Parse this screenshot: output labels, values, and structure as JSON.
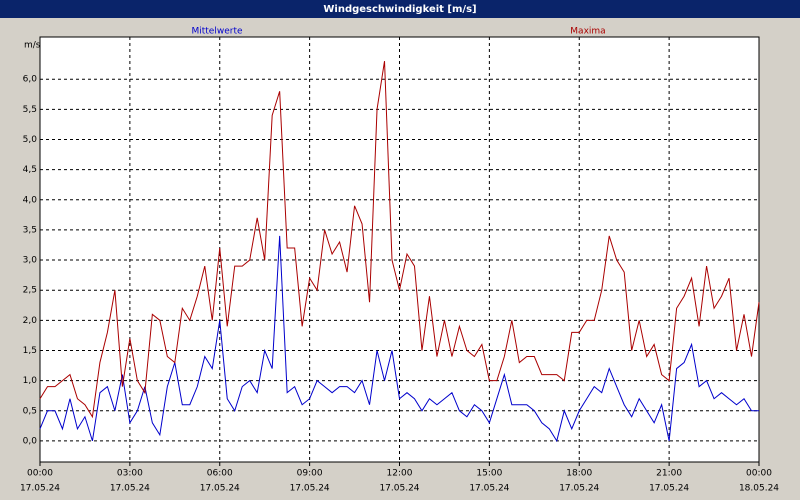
{
  "chart_data": {
    "type": "line",
    "title": "Windgeschwindigkeit [m/s]",
    "y_label": "m/s",
    "x": [
      0,
      0.25,
      0.5,
      0.75,
      1,
      1.25,
      1.5,
      1.75,
      2,
      2.25,
      2.5,
      2.75,
      3,
      3.25,
      3.5,
      3.75,
      4,
      4.25,
      4.5,
      4.75,
      5,
      5.25,
      5.5,
      5.75,
      6,
      6.25,
      6.5,
      6.75,
      7,
      7.25,
      7.5,
      7.75,
      8,
      8.25,
      8.5,
      8.75,
      9,
      9.25,
      9.5,
      9.75,
      10,
      10.25,
      10.5,
      10.75,
      11,
      11.25,
      11.5,
      11.75,
      12,
      12.25,
      12.5,
      12.75,
      13,
      13.25,
      13.5,
      13.75,
      14,
      14.25,
      14.5,
      14.75,
      15,
      15.25,
      15.5,
      15.75,
      16,
      16.25,
      16.5,
      16.75,
      17,
      17.25,
      17.5,
      17.75,
      18,
      18.25,
      18.5,
      18.75,
      19,
      19.25,
      19.5,
      19.75,
      20,
      20.25,
      20.5,
      20.75,
      21,
      21.25,
      21.5,
      21.75,
      22,
      22.25,
      22.5,
      22.75,
      23,
      23.25,
      23.5,
      23.75,
      24
    ],
    "series": [
      {
        "name": "Mittelwerte",
        "color": "#0000cc",
        "values": [
          0.2,
          0.5,
          0.5,
          0.2,
          0.7,
          0.2,
          0.4,
          0.0,
          0.8,
          0.9,
          0.5,
          1.1,
          0.3,
          0.5,
          0.9,
          0.3,
          0.1,
          0.9,
          1.3,
          0.6,
          0.6,
          0.9,
          1.4,
          1.2,
          2.0,
          0.7,
          0.5,
          0.9,
          1.0,
          0.8,
          1.5,
          1.2,
          3.4,
          0.8,
          0.9,
          0.6,
          0.7,
          1.0,
          0.9,
          0.8,
          0.9,
          0.9,
          0.8,
          1.0,
          0.6,
          1.5,
          1.0,
          1.5,
          0.7,
          0.8,
          0.7,
          0.5,
          0.7,
          0.6,
          0.7,
          0.8,
          0.5,
          0.4,
          0.6,
          0.5,
          0.3,
          0.7,
          1.1,
          0.6,
          0.6,
          0.6,
          0.5,
          0.3,
          0.2,
          0.0,
          0.5,
          0.2,
          0.5,
          0.7,
          0.9,
          0.8,
          1.2,
          0.9,
          0.6,
          0.4,
          0.7,
          0.5,
          0.3,
          0.6,
          0.0,
          1.2,
          1.3,
          1.6,
          0.9,
          1.0,
          0.7,
          0.8,
          0.7,
          0.6,
          0.7,
          0.5,
          0.5
        ]
      },
      {
        "name": "Maxima",
        "color": "#aa0000",
        "values": [
          0.7,
          0.9,
          0.9,
          1.0,
          1.1,
          0.7,
          0.6,
          0.4,
          1.3,
          1.8,
          2.5,
          0.9,
          1.7,
          1.0,
          0.8,
          2.1,
          2.0,
          1.4,
          1.3,
          2.2,
          2.0,
          2.4,
          2.9,
          2.0,
          3.2,
          1.9,
          2.9,
          2.9,
          3.0,
          3.7,
          3.0,
          5.4,
          5.8,
          3.2,
          3.2,
          1.9,
          2.7,
          2.5,
          3.5,
          3.1,
          3.3,
          2.8,
          3.9,
          3.6,
          2.3,
          5.5,
          6.3,
          3.0,
          2.5,
          3.1,
          2.9,
          1.5,
          2.4,
          1.4,
          2.0,
          1.4,
          1.9,
          1.5,
          1.4,
          1.6,
          1.0,
          1.0,
          1.4,
          2.0,
          1.3,
          1.4,
          1.4,
          1.1,
          1.1,
          1.1,
          1.0,
          1.8,
          1.8,
          2.0,
          2.0,
          2.5,
          3.4,
          3.0,
          2.8,
          1.5,
          2.0,
          1.4,
          1.6,
          1.1,
          1.0,
          2.2,
          2.4,
          2.7,
          1.9,
          2.9,
          2.2,
          2.4,
          2.7,
          1.5,
          2.1,
          1.4,
          2.3
        ]
      }
    ],
    "xlim": [
      0,
      24
    ],
    "xticks": [
      {
        "value": 0,
        "label": "00:00",
        "date": "17.05.24"
      },
      {
        "value": 3,
        "label": "03:00",
        "date": "17.05.24"
      },
      {
        "value": 6,
        "label": "06:00",
        "date": "17.05.24"
      },
      {
        "value": 9,
        "label": "09:00",
        "date": "17.05.24"
      },
      {
        "value": 12,
        "label": "12:00",
        "date": "17.05.24"
      },
      {
        "value": 15,
        "label": "15:00",
        "date": "17.05.24"
      },
      {
        "value": 18,
        "label": "18:00",
        "date": "17.05.24"
      },
      {
        "value": 21,
        "label": "21:00",
        "date": "17.05.24"
      },
      {
        "value": 24,
        "label": "00:00",
        "date": "18.05.24"
      }
    ],
    "ylim": [
      -0.35,
      6.7
    ],
    "yticks": [
      {
        "value": 0,
        "label": "0,0"
      },
      {
        "value": 0.5,
        "label": "0,5"
      },
      {
        "value": 1,
        "label": "1,0"
      },
      {
        "value": 1.5,
        "label": "1,5"
      },
      {
        "value": 2,
        "label": "2,0"
      },
      {
        "value": 2.5,
        "label": "2,5"
      },
      {
        "value": 3,
        "label": "3,0"
      },
      {
        "value": 3.5,
        "label": "3,5"
      },
      {
        "value": 4,
        "label": "4,0"
      },
      {
        "value": 4.5,
        "label": "4,5"
      },
      {
        "value": 5,
        "label": "5,0"
      },
      {
        "value": 5.5,
        "label": "5,5"
      },
      {
        "value": 6,
        "label": "6,0"
      }
    ],
    "grid": true
  }
}
